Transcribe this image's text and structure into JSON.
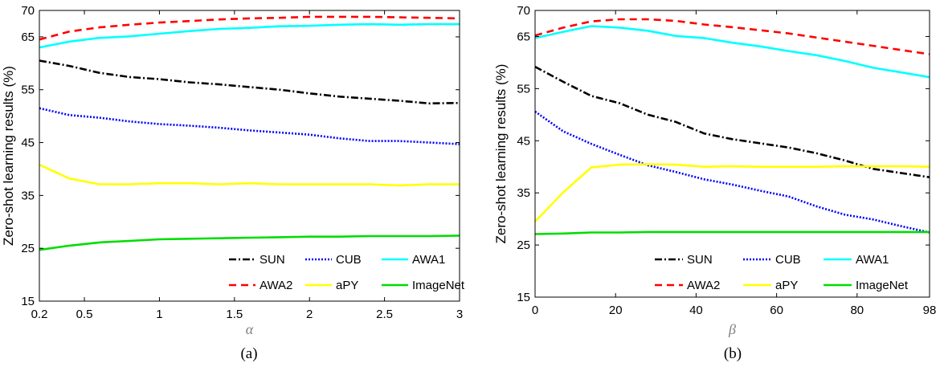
{
  "chart_data": [
    {
      "type": "line",
      "panel": "(a)",
      "xlabel": "α",
      "ylabel": "Zero-shot learning results (%)",
      "xticks": [
        {
          "v": 0.2,
          "label": "0.2"
        },
        {
          "v": 0.5,
          "label": "0.5"
        },
        {
          "v": 1,
          "label": "1"
        },
        {
          "v": 1.5,
          "label": "1.5"
        },
        {
          "v": 2,
          "label": "2"
        },
        {
          "v": 2.5,
          "label": "2.5"
        },
        {
          "v": 3,
          "label": "3"
        }
      ],
      "yticks": [
        {
          "v": 15,
          "label": "15"
        },
        {
          "v": 25,
          "label": "25"
        },
        {
          "v": 35,
          "label": "35"
        },
        {
          "v": 45,
          "label": "45"
        },
        {
          "v": 55,
          "label": "55"
        },
        {
          "v": 65,
          "label": "65"
        },
        {
          "v": 70,
          "label": "70"
        }
      ],
      "xlim": [
        0.2,
        3
      ],
      "ylim": [
        15,
        70
      ],
      "grid": false,
      "legend_position": "bottom-right",
      "x": [
        0.2,
        0.4,
        0.6,
        0.8,
        1.0,
        1.2,
        1.4,
        1.6,
        1.8,
        2.0,
        2.2,
        2.4,
        2.6,
        2.8,
        3.0
      ],
      "series": [
        {
          "name": "SUN",
          "color": "#000000",
          "style": "dashdot",
          "values": [
            60.5,
            59.5,
            58.2,
            57.4,
            57.0,
            56.4,
            56.0,
            55.5,
            55.0,
            54.3,
            53.7,
            53.3,
            52.9,
            52.4,
            52.5
          ]
        },
        {
          "name": "CUB",
          "color": "#0000ff",
          "style": "dotted",
          "values": [
            51.5,
            50.2,
            49.7,
            49.0,
            48.5,
            48.2,
            47.8,
            47.3,
            46.9,
            46.5,
            45.8,
            45.3,
            45.3,
            45.0,
            44.7
          ]
        },
        {
          "name": "AWA1",
          "color": "#00ffff",
          "style": "solid",
          "values": [
            63.0,
            64.1,
            64.8,
            65.1,
            65.6,
            66.1,
            66.5,
            66.7,
            67.0,
            67.1,
            67.3,
            67.4,
            67.3,
            67.4,
            67.4
          ]
        },
        {
          "name": "AWA2",
          "color": "#ff0000",
          "style": "dashed",
          "values": [
            64.5,
            66.0,
            66.8,
            67.3,
            67.7,
            68.0,
            68.3,
            68.5,
            68.6,
            68.8,
            68.8,
            68.8,
            68.7,
            68.6,
            68.5
          ]
        },
        {
          "name": "aPY",
          "color": "#ffff00",
          "style": "solid",
          "values": [
            40.8,
            38.2,
            37.1,
            37.1,
            37.3,
            37.3,
            37.1,
            37.3,
            37.1,
            37.1,
            37.1,
            37.1,
            36.9,
            37.1,
            37.1
          ]
        },
        {
          "name": "ImageNet",
          "color": "#00dd00",
          "style": "solid",
          "values": [
            24.7,
            25.5,
            26.1,
            26.4,
            26.7,
            26.8,
            26.9,
            27.0,
            27.1,
            27.2,
            27.2,
            27.3,
            27.3,
            27.3,
            27.4
          ]
        }
      ]
    },
    {
      "type": "line",
      "panel": "(b)",
      "xlabel": "β",
      "ylabel": "Zero-shot learning results (%)",
      "xticks": [
        {
          "v": 0,
          "label": "0"
        },
        {
          "v": 20,
          "label": "20"
        },
        {
          "v": 40,
          "label": "40"
        },
        {
          "v": 60,
          "label": "60"
        },
        {
          "v": 80,
          "label": "80"
        },
        {
          "v": 98,
          "label": "98"
        }
      ],
      "yticks": [
        {
          "v": 15,
          "label": "15"
        },
        {
          "v": 25,
          "label": "25"
        },
        {
          "v": 35,
          "label": "35"
        },
        {
          "v": 45,
          "label": "45"
        },
        {
          "v": 55,
          "label": "55"
        },
        {
          "v": 65,
          "label": "65"
        },
        {
          "v": 70,
          "label": "70"
        }
      ],
      "xlim": [
        0,
        98
      ],
      "ylim": [
        15,
        70
      ],
      "grid": false,
      "legend_position": "bottom-right",
      "x": [
        0,
        7,
        14,
        21,
        28,
        35,
        42,
        49,
        56,
        63,
        70,
        77,
        84,
        91,
        98
      ],
      "series": [
        {
          "name": "SUN",
          "color": "#000000",
          "style": "dashdot",
          "values": [
            59.2,
            56.3,
            53.6,
            52.2,
            50.0,
            48.6,
            46.4,
            45.3,
            44.5,
            43.7,
            42.6,
            41.2,
            39.6,
            38.8,
            38.0
          ]
        },
        {
          "name": "CUB",
          "color": "#0000ff",
          "style": "dotted",
          "values": [
            50.6,
            46.8,
            44.4,
            42.3,
            40.3,
            39.0,
            37.6,
            36.6,
            35.4,
            34.3,
            32.4,
            30.8,
            29.9,
            28.6,
            27.4
          ]
        },
        {
          "name": "AWA1",
          "color": "#00ffff",
          "style": "solid",
          "values": [
            64.7,
            65.9,
            67.0,
            66.7,
            66.1,
            65.1,
            64.7,
            63.8,
            63.1,
            62.2,
            61.4,
            60.3,
            59.0,
            58.1,
            57.2
          ]
        },
        {
          "name": "AWA2",
          "color": "#ff0000",
          "style": "dashed",
          "values": [
            65.2,
            66.7,
            67.9,
            68.3,
            68.3,
            68.0,
            67.3,
            66.8,
            66.2,
            65.6,
            64.8,
            64.0,
            63.2,
            62.4,
            61.6
          ]
        },
        {
          "name": "aPY",
          "color": "#ffff00",
          "style": "solid",
          "values": [
            29.5,
            35.1,
            39.9,
            40.4,
            40.5,
            40.4,
            40.0,
            40.1,
            40.0,
            40.0,
            40.0,
            40.1,
            40.1,
            40.1,
            40.0
          ]
        },
        {
          "name": "ImageNet",
          "color": "#00dd00",
          "style": "solid",
          "values": [
            27.1,
            27.2,
            27.4,
            27.4,
            27.5,
            27.5,
            27.5,
            27.5,
            27.5,
            27.5,
            27.5,
            27.5,
            27.5,
            27.5,
            27.5
          ]
        }
      ]
    }
  ]
}
